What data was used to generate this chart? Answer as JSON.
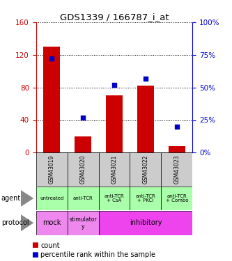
{
  "title": "GDS1339 / 166787_i_at",
  "samples": [
    "GSM43019",
    "GSM43020",
    "GSM43021",
    "GSM43022",
    "GSM43023"
  ],
  "counts": [
    130,
    20,
    70,
    82,
    8
  ],
  "percentiles": [
    72,
    27,
    52,
    57,
    20
  ],
  "ylim_left": [
    0,
    160
  ],
  "ylim_right": [
    0,
    100
  ],
  "left_ticks": [
    0,
    40,
    80,
    120,
    160
  ],
  "right_ticks": [
    0,
    25,
    50,
    75,
    100
  ],
  "bar_color": "#cc0000",
  "dot_color": "#0000cc",
  "agent_labels": [
    "untreated",
    "anti-TCR",
    "anti-TCR\n+ CsA",
    "anti-TCR\n+ PKCi",
    "anti-TCR\n+ Combo"
  ],
  "agent_bg": "#aaffaa",
  "sample_bg": "#cccccc",
  "protocol_mock_bg": "#ee88ee",
  "protocol_stim_bg": "#ee88ee",
  "protocol_inhib_bg": "#ee44ee",
  "left_tick_color": "#cc0000",
  "right_tick_color": "#0000cc",
  "legend_count_color": "#cc0000",
  "legend_pct_color": "#0000cc"
}
